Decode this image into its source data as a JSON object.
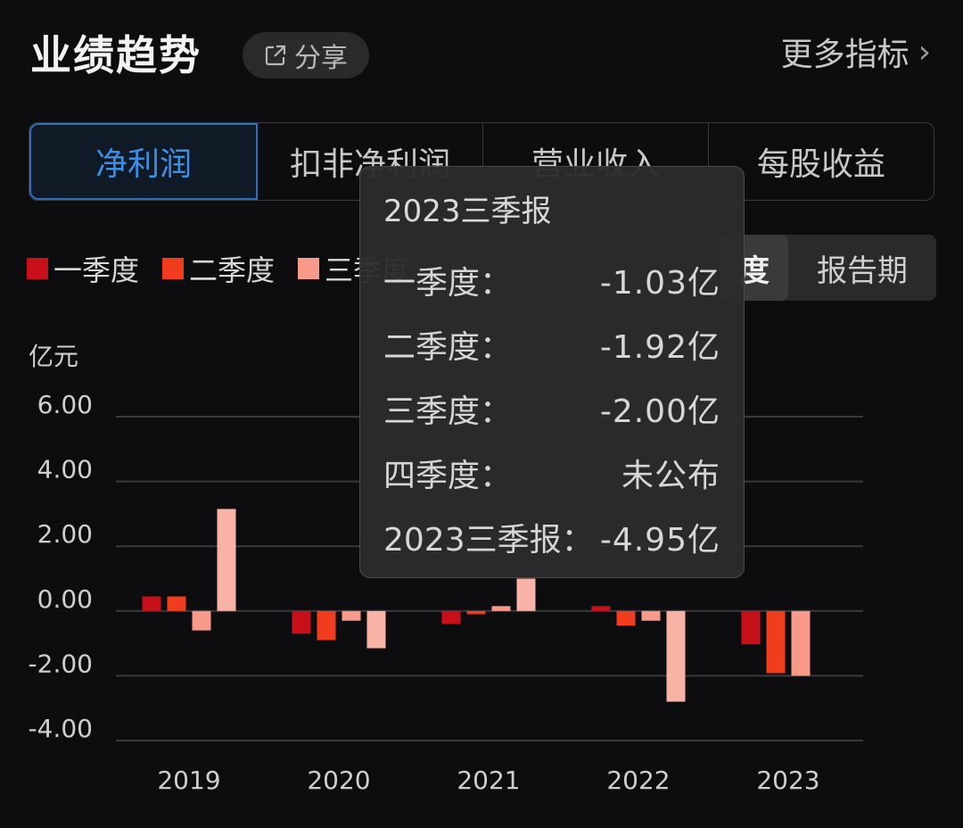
{
  "header": {
    "title": "业绩趋势",
    "share_label": "分享",
    "more_label": "更多指标"
  },
  "tabs": [
    {
      "label": "净利润",
      "active": true
    },
    {
      "label": "扣非净利润",
      "active": false
    },
    {
      "label": "营业收入",
      "active": false
    },
    {
      "label": "每股收益",
      "active": false
    }
  ],
  "legend": [
    {
      "label": "一季度",
      "color": "#c8101a"
    },
    {
      "label": "二季度",
      "color": "#ef3d1e"
    },
    {
      "label": "三季度",
      "color": "#f79a8a"
    }
  ],
  "period_toggle": {
    "selected": "度",
    "other": "报告期"
  },
  "unit": "亿元",
  "chart_data": {
    "type": "bar",
    "categories": [
      "2019",
      "2020",
      "2021",
      "2022",
      "2023"
    ],
    "series": [
      {
        "name": "一季度",
        "color": "#c8101a",
        "values": [
          0.45,
          -0.7,
          -0.4,
          0.15,
          -1.03
        ]
      },
      {
        "name": "二季度",
        "color": "#ef3d1e",
        "values": [
          0.45,
          -0.9,
          -0.1,
          -0.45,
          -1.92
        ]
      },
      {
        "name": "三季度",
        "color": "#f79a8a",
        "values": [
          -0.6,
          -0.3,
          0.15,
          -0.3,
          -2.0
        ]
      },
      {
        "name": "四季度",
        "color": "#f9b3a6",
        "values": [
          3.15,
          -1.15,
          1.0,
          -2.8,
          null
        ]
      }
    ],
    "yticks": [
      "6.00",
      "4.00",
      "2.00",
      "0.00",
      "-2.00",
      "-4.00"
    ],
    "ylim": [
      -4,
      6
    ],
    "grid": true
  },
  "tooltip": {
    "title": "2023三季报",
    "rows": [
      {
        "label": "一季度：",
        "value": "-1.03亿"
      },
      {
        "label": "二季度：",
        "value": "-1.92亿"
      },
      {
        "label": "三季度：",
        "value": "-2.00亿"
      },
      {
        "label": "四季度：",
        "value": "未公布"
      },
      {
        "label": "2023三季报：",
        "value": "-4.95亿"
      }
    ]
  }
}
